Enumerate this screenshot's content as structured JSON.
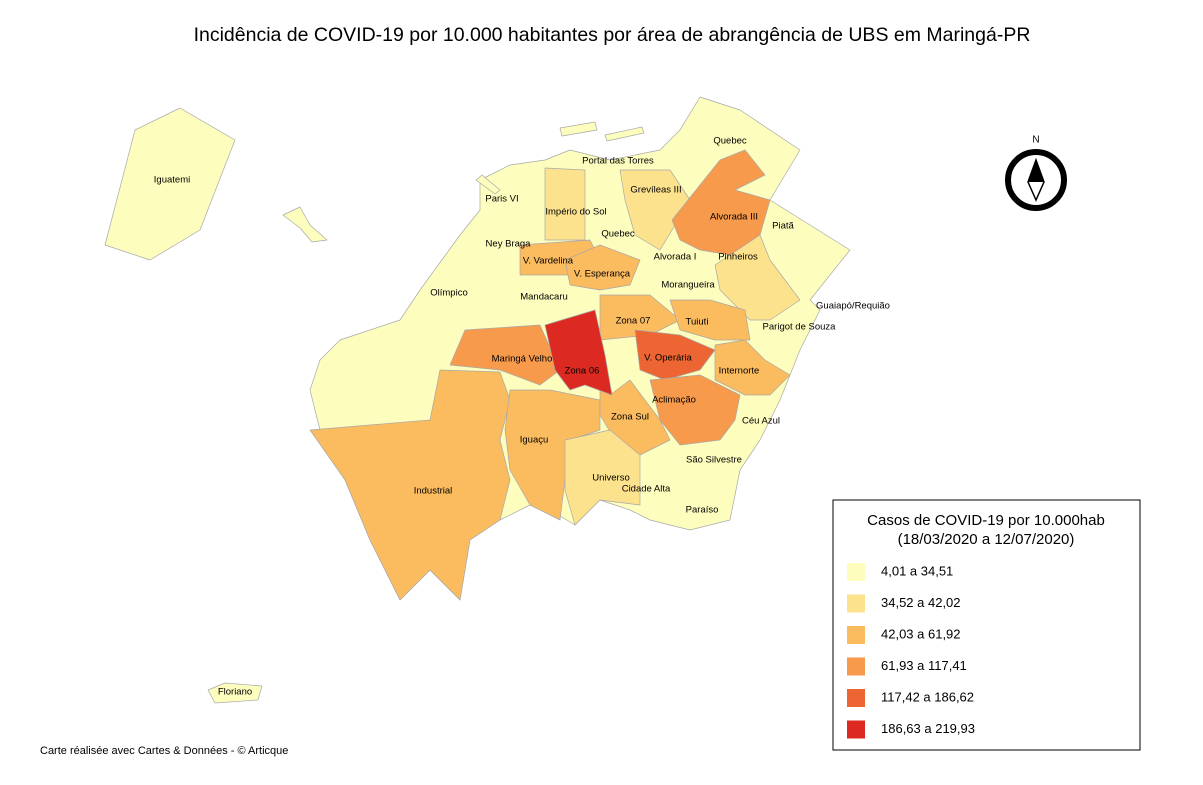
{
  "title": "Incidência de COVID-19 por 10.000 habitantes por área  de abrangência de UBS em Maringá-PR",
  "regions": [
    {
      "label": "Iguatemi",
      "class": 0
    },
    {
      "label": "Floriano",
      "class": 0
    },
    {
      "label": "Paris VI",
      "class": 0
    },
    {
      "label": "Império do Sol",
      "class": 1
    },
    {
      "label": "Portal das Torres",
      "class": 0
    },
    {
      "label": "Quebec",
      "class": 0
    },
    {
      "label": "Grevíleas III",
      "class": 1
    },
    {
      "label": "Alvorada III",
      "class": 3
    },
    {
      "label": "Piatã",
      "class": 0
    },
    {
      "label": "Ney Braga",
      "class": 0
    },
    {
      "label": "Quebec",
      "class": 0
    },
    {
      "label": "V. Vardelina",
      "class": 2
    },
    {
      "label": "V. Esperança",
      "class": 2
    },
    {
      "label": "Alvorada I",
      "class": 0
    },
    {
      "label": "Pinheiros",
      "class": 1
    },
    {
      "label": "Olímpico",
      "class": 0
    },
    {
      "label": "Mandacaru",
      "class": 0
    },
    {
      "label": "Morangueira",
      "class": 0
    },
    {
      "label": "Guaiapó/Requião",
      "class": 0
    },
    {
      "label": "Zona 07",
      "class": 2
    },
    {
      "label": "Tuiuti",
      "class": 2
    },
    {
      "label": "Parigot de Souza",
      "class": 0
    },
    {
      "label": "Maringá Velho",
      "class": 3
    },
    {
      "label": "Zona 06",
      "class": 5
    },
    {
      "label": "V. Operária",
      "class": 4
    },
    {
      "label": "Internorte",
      "class": 2
    },
    {
      "label": "Aclimação",
      "class": 3
    },
    {
      "label": "Zona Sul",
      "class": 2
    },
    {
      "label": "Céu Azul",
      "class": 0
    },
    {
      "label": "Iguaçu",
      "class": 2
    },
    {
      "label": "Industrial",
      "class": 2
    },
    {
      "label": "Universo",
      "class": 1
    },
    {
      "label": "São Silvestre",
      "class": 0
    },
    {
      "label": "Cidade Alta",
      "class": 0
    },
    {
      "label": "Paraíso",
      "class": 0
    }
  ],
  "legend": {
    "title_line1": "Casos de COVID-19 por 10.000hab",
    "title_line2": "(18/03/2020 a 12/07/2020)",
    "items": [
      {
        "label": "4,01 a 34,51",
        "color": "#fdfdbe"
      },
      {
        "label": "34,52 a 42,02",
        "color": "#fde28d"
      },
      {
        "label": "42,03 a 61,92",
        "color": "#fbbb5f"
      },
      {
        "label": "61,93 a 117,41",
        "color": "#f89a4b"
      },
      {
        "label": "117,42 a 186,62",
        "color": "#ed6533"
      },
      {
        "label": "186,63 a 219,93",
        "color": "#dc2a22"
      }
    ]
  },
  "north": "N",
  "credit": "Carte réalisée avec Cartes & Données - © Articque"
}
